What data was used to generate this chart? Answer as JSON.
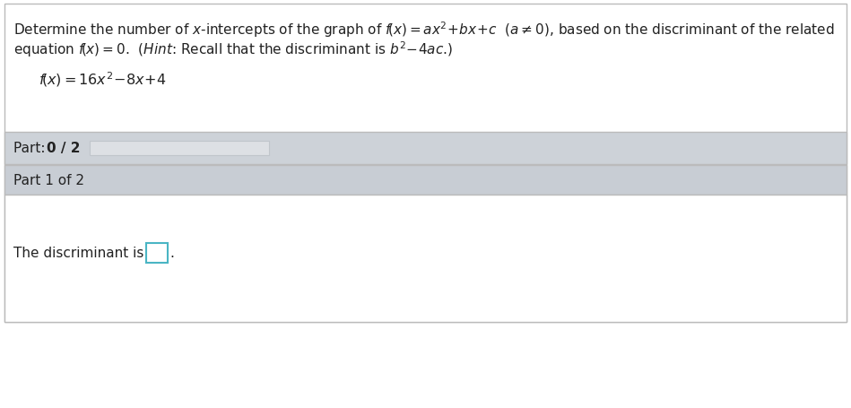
{
  "bg_color": "#ffffff",
  "part_panel_color": "#cdd2d8",
  "part1_panel_color": "#c8cdd4",
  "content_bg_color": "#e8eaed",
  "border_color": "#bbbbbb",
  "input_box_border": "#4ab5c4",
  "progress_bar_color": "#dde0e4",
  "progress_bar_border": "#c0c5cb",
  "text_color": "#222222",
  "part_label": "Part: ",
  "part_bold": "0 / 2",
  "part1_text": "Part 1 of 2",
  "discriminant_text": "The discriminant is",
  "figsize": [
    9.49,
    4.56
  ],
  "dpi": 100,
  "fig_bg": "#f5f5f5"
}
